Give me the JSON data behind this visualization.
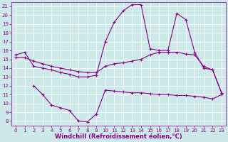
{
  "xlabel": "Windchill (Refroidissement éolien,°C)",
  "bg_color": "#cce8e8",
  "line_color": "#880088",
  "grid_color": "#ffffff",
  "xlim": [
    -0.5,
    23.5
  ],
  "ylim": [
    7.5,
    21.5
  ],
  "xticks": [
    0,
    1,
    2,
    3,
    4,
    5,
    6,
    7,
    8,
    9,
    10,
    11,
    12,
    13,
    14,
    15,
    16,
    17,
    18,
    19,
    20,
    21,
    22,
    23
  ],
  "yticks": [
    8,
    9,
    10,
    11,
    12,
    13,
    14,
    15,
    16,
    17,
    18,
    19,
    20,
    21
  ],
  "line1_x": [
    0,
    1,
    2,
    3,
    4,
    5,
    6,
    7,
    8,
    9,
    10,
    11,
    12,
    13,
    14,
    15,
    16,
    17,
    18,
    19,
    20,
    21,
    22,
    23
  ],
  "line1_y": [
    15.5,
    15.8,
    14.2,
    14.0,
    13.8,
    13.5,
    13.3,
    13.0,
    13.0,
    13.2,
    17.0,
    19.2,
    20.5,
    21.2,
    21.2,
    16.2,
    16.0,
    16.0,
    20.2,
    19.5,
    15.8,
    14.0,
    13.8,
    11.2
  ],
  "line2_x": [
    0,
    1,
    2,
    3,
    4,
    5,
    6,
    7,
    8,
    9,
    10,
    11,
    12,
    13,
    14,
    15,
    16,
    17,
    18,
    19,
    20,
    21,
    22,
    23
  ],
  "line2_y": [
    15.2,
    15.2,
    14.8,
    14.5,
    14.2,
    14.0,
    13.8,
    13.6,
    13.5,
    13.5,
    14.2,
    14.5,
    14.6,
    14.8,
    15.0,
    15.5,
    15.8,
    15.8,
    15.8,
    15.6,
    15.5,
    14.2,
    13.8,
    11.2
  ],
  "line3_x": [
    2,
    3,
    4,
    5,
    6,
    7,
    8,
    9,
    10,
    11,
    12,
    13,
    14,
    15,
    16,
    17,
    18,
    19,
    20,
    21,
    22,
    23
  ],
  "line3_y": [
    12.0,
    11.0,
    9.8,
    9.5,
    9.2,
    8.0,
    7.9,
    8.8,
    11.5,
    11.4,
    11.3,
    11.2,
    11.2,
    11.1,
    11.0,
    11.0,
    10.9,
    10.9,
    10.8,
    10.7,
    10.5,
    11.0
  ],
  "marker": "+",
  "markersize": 3,
  "linewidth": 0.8,
  "tick_fontsize": 5.0,
  "label_fontsize": 6.0
}
